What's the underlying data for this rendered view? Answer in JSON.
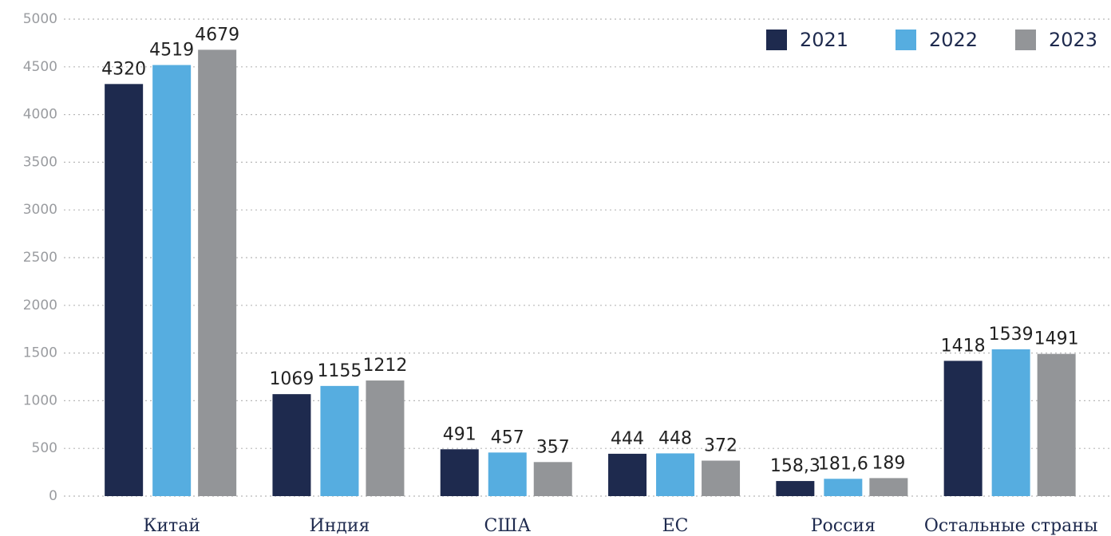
{
  "chart_data": {
    "type": "bar",
    "categories": [
      "Китай",
      "Индия",
      "США",
      "ЕС",
      "Россия",
      "Остальные страны"
    ],
    "series": [
      {
        "name": "2021",
        "color": "#1e2a4e",
        "values": [
          4320,
          1069,
          491,
          444,
          158.3,
          1418
        ],
        "value_labels": [
          "4320",
          "1069",
          "491",
          "444",
          "158,3",
          "1418"
        ]
      },
      {
        "name": "2022",
        "color": "#56ade0",
        "values": [
          4519,
          1155,
          457,
          448,
          181.6,
          1539
        ],
        "value_labels": [
          "4519",
          "1155",
          "457",
          "448",
          "181,6",
          "1539"
        ]
      },
      {
        "name": "2023",
        "color": "#939598",
        "values": [
          4679,
          1212,
          357,
          372,
          189,
          1491
        ],
        "value_labels": [
          "4679",
          "1212",
          "357",
          "372",
          "189",
          "1491"
        ]
      }
    ],
    "ylim": [
      0,
      5000
    ],
    "yticks": [
      0,
      500,
      1000,
      1500,
      2000,
      2500,
      3000,
      3500,
      4000,
      4500,
      5000
    ],
    "grid": true,
    "legend": "top-right"
  }
}
